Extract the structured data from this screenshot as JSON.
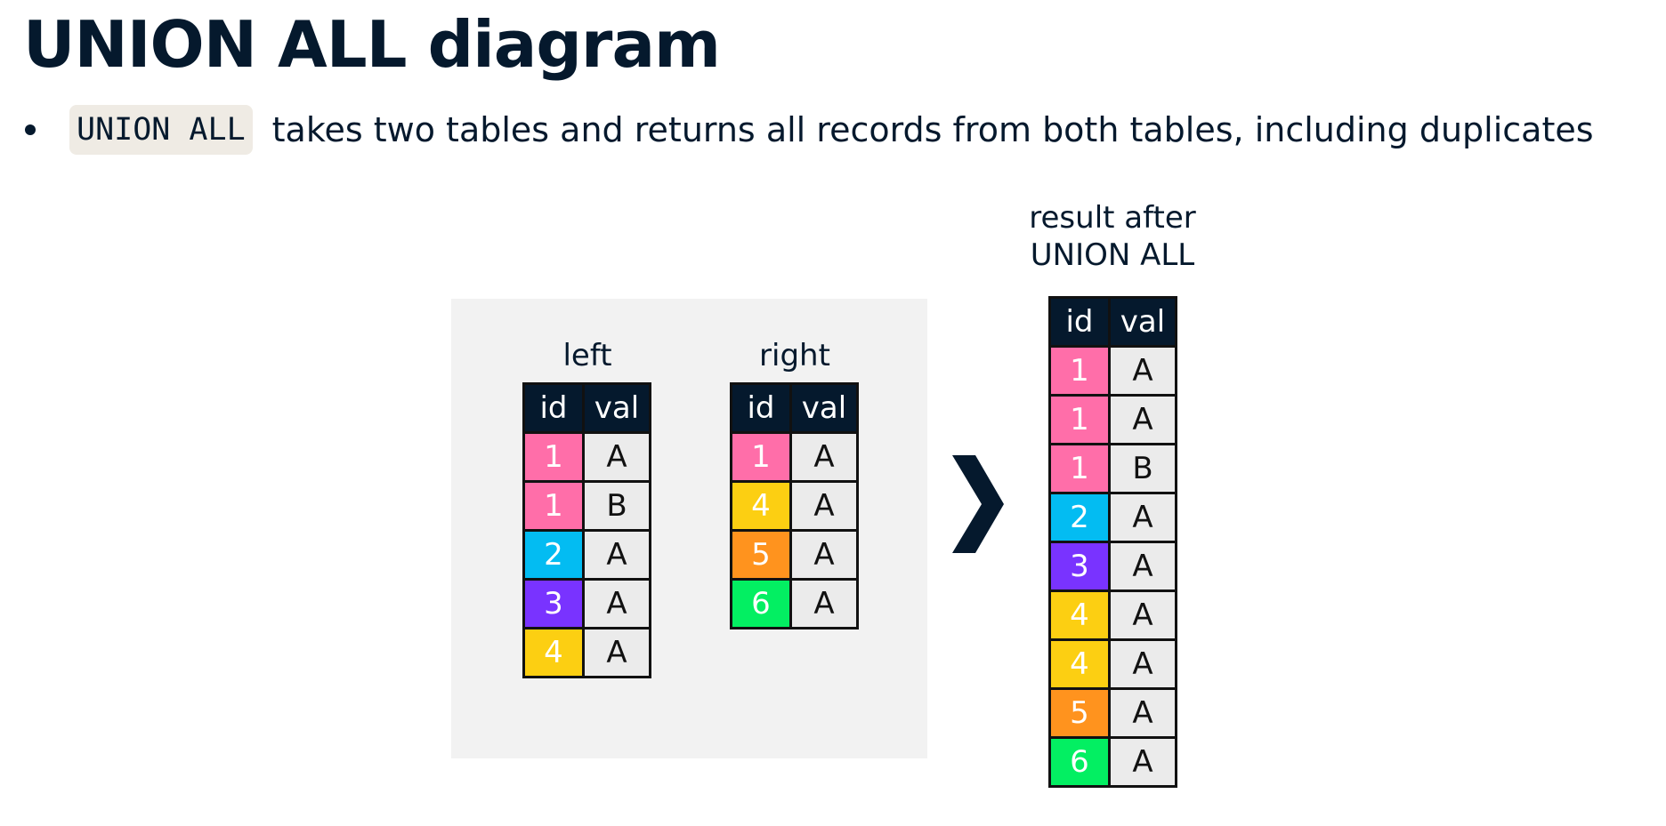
{
  "title": "UNION ALL diagram",
  "bullet": {
    "code": "UNION ALL",
    "text": "takes two tables and returns all records from both tables, including duplicates"
  },
  "colors": {
    "pink": "#ff6ea9",
    "blue": "#03bcf2",
    "purple": "#7933ff",
    "yellow": "#fccf12",
    "orange": "#ff931e",
    "green": "#03ef62",
    "navy": "#05192d",
    "cell": "#ebebeb",
    "panel": "#f2f2f2"
  },
  "left": {
    "label": "left",
    "headers": {
      "id": "id",
      "val": "val"
    },
    "rows": [
      {
        "id": "1",
        "val": "A",
        "color": "#ff6ea9"
      },
      {
        "id": "1",
        "val": "B",
        "color": "#ff6ea9"
      },
      {
        "id": "2",
        "val": "A",
        "color": "#03bcf2"
      },
      {
        "id": "3",
        "val": "A",
        "color": "#7933ff"
      },
      {
        "id": "4",
        "val": "A",
        "color": "#fccf12"
      }
    ]
  },
  "right": {
    "label": "right",
    "headers": {
      "id": "id",
      "val": "val"
    },
    "rows": [
      {
        "id": "1",
        "val": "A",
        "color": "#ff6ea9"
      },
      {
        "id": "4",
        "val": "A",
        "color": "#fccf12"
      },
      {
        "id": "5",
        "val": "A",
        "color": "#ff931e"
      },
      {
        "id": "6",
        "val": "A",
        "color": "#03ef62"
      }
    ]
  },
  "arrow_icon": "chevron-right-icon",
  "result": {
    "label_line1": "result after",
    "label_line2": "UNION ALL",
    "headers": {
      "id": "id",
      "val": "val"
    },
    "rows": [
      {
        "id": "1",
        "val": "A",
        "color": "#ff6ea9"
      },
      {
        "id": "1",
        "val": "A",
        "color": "#ff6ea9"
      },
      {
        "id": "1",
        "val": "B",
        "color": "#ff6ea9"
      },
      {
        "id": "2",
        "val": "A",
        "color": "#03bcf2"
      },
      {
        "id": "3",
        "val": "A",
        "color": "#7933ff"
      },
      {
        "id": "4",
        "val": "A",
        "color": "#fccf12"
      },
      {
        "id": "4",
        "val": "A",
        "color": "#fccf12"
      },
      {
        "id": "5",
        "val": "A",
        "color": "#ff931e"
      },
      {
        "id": "6",
        "val": "A",
        "color": "#03ef62"
      }
    ]
  }
}
